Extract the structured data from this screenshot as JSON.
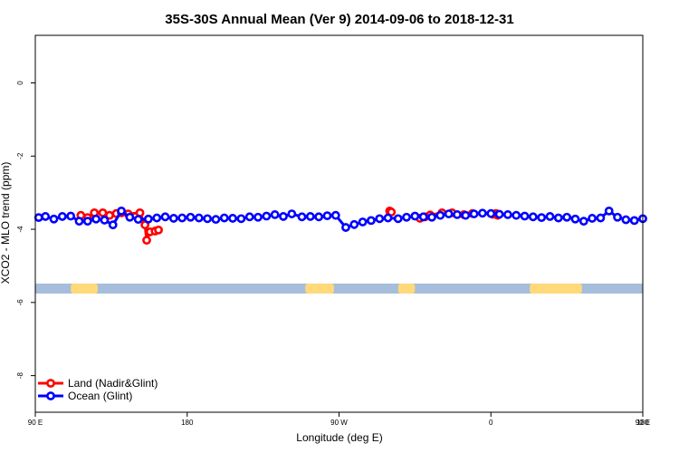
{
  "chart_data": {
    "type": "line",
    "title": "35S-30S Annual Mean (Ver 9)   2014-09-06 to 2018-12-31",
    "xlabel": "Longitude (deg E)",
    "ylabel": "XCO2 - MLO trend (ppm)",
    "xlim": [
      90,
      450
    ],
    "ylim": [
      -9.0,
      1.3
    ],
    "x_ticks": [
      {
        "value": 90,
        "label": "90 E"
      },
      {
        "value": 180,
        "label": "180"
      },
      {
        "value": 270,
        "label": "90 W"
      },
      {
        "value": 360,
        "label": "0"
      },
      {
        "value": 450,
        "label": "180"
      }
    ],
    "x_ticks_extra": [
      {
        "value": 360,
        "label": "90 E"
      }
    ],
    "y_ticks": [
      0,
      -2,
      -4,
      -6,
      -8
    ],
    "grid": false,
    "legend_position": "bottom-left",
    "series": [
      {
        "name": "Land (Nadir&Glint)",
        "color": "#ff0000",
        "x": [
          117,
          121,
          125,
          130,
          134,
          138,
          141,
          145,
          152,
          155,
          156,
          158,
          161,
          163,
          300,
          301,
          318,
          321,
          324,
          331,
          337,
          344,
          349,
          361,
          363,
          364
        ],
        "y": [
          -3.62,
          -3.68,
          -3.55,
          -3.55,
          -3.62,
          -3.57,
          -3.55,
          -3.58,
          -3.55,
          -3.88,
          -4.3,
          -4.07,
          -4.05,
          -4.02,
          -3.5,
          -3.53,
          -3.7,
          -3.66,
          -3.61,
          -3.55,
          -3.55,
          -3.6,
          -3.57,
          -3.59,
          -3.57,
          -3.62
        ]
      },
      {
        "name": "Ocean (Glint)",
        "color": "#0000ff",
        "x": [
          92,
          96,
          101,
          106,
          111,
          116,
          121,
          126,
          131,
          136,
          141,
          146,
          151,
          157,
          162,
          167,
          172,
          177,
          182,
          187,
          192,
          197,
          202,
          207,
          212,
          217,
          222,
          227,
          232,
          237,
          242,
          248,
          253,
          258,
          263,
          268,
          274,
          279,
          284,
          289,
          294,
          299,
          305,
          310,
          315,
          320,
          325,
          330,
          335,
          340,
          345,
          350,
          355,
          360,
          365,
          370,
          375,
          380,
          385,
          390,
          395,
          400,
          405,
          410,
          415,
          420,
          425,
          430,
          435,
          440,
          445,
          450
        ],
        "y": [
          -3.68,
          -3.65,
          -3.72,
          -3.65,
          -3.64,
          -3.78,
          -3.78,
          -3.72,
          -3.75,
          -3.88,
          -3.5,
          -3.67,
          -3.73,
          -3.72,
          -3.69,
          -3.66,
          -3.7,
          -3.69,
          -3.67,
          -3.69,
          -3.71,
          -3.73,
          -3.69,
          -3.7,
          -3.71,
          -3.66,
          -3.67,
          -3.64,
          -3.6,
          -3.65,
          -3.58,
          -3.66,
          -3.65,
          -3.66,
          -3.63,
          -3.62,
          -3.95,
          -3.87,
          -3.8,
          -3.76,
          -3.71,
          -3.69,
          -3.71,
          -3.67,
          -3.64,
          -3.66,
          -3.67,
          -3.62,
          -3.58,
          -3.6,
          -3.62,
          -3.58,
          -3.56,
          -3.57,
          -3.59,
          -3.6,
          -3.62,
          -3.64,
          -3.66,
          -3.68,
          -3.65,
          -3.69,
          -3.67,
          -3.72,
          -3.78,
          -3.7,
          -3.69,
          -3.5,
          -3.67,
          -3.74,
          -3.76,
          -3.71
        ]
      }
    ],
    "background_strip": {
      "description": "latitude-band land/ocean mask",
      "ocean_color": "#a6bddb",
      "land_color": "#ffd97a",
      "land_segments": [
        [
          111,
          127
        ],
        [
          250,
          267
        ],
        [
          305,
          315
        ],
        [
          383,
          414
        ]
      ]
    }
  }
}
